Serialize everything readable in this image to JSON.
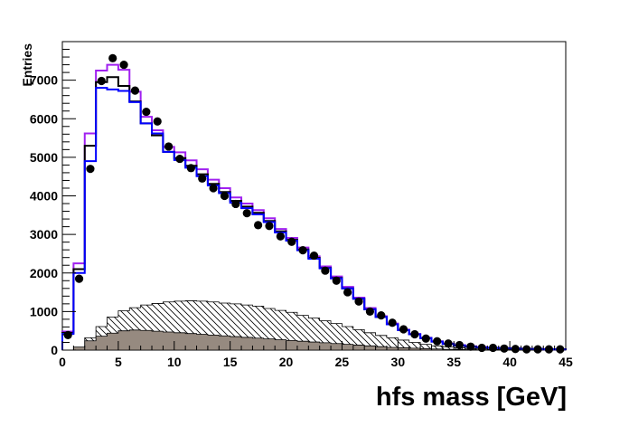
{
  "chart_data": {
    "type": "line",
    "title": "",
    "xlabel": "hfs mass [GeV]",
    "ylabel": "Entries",
    "xlim": [
      0,
      45
    ],
    "ylim": [
      0,
      8000
    ],
    "x_ticks": [
      0,
      5,
      10,
      15,
      20,
      25,
      30,
      35,
      40,
      45
    ],
    "y_ticks": [
      0,
      1000,
      2000,
      3000,
      4000,
      5000,
      6000,
      7000
    ],
    "bin_width": 1,
    "bin_edges_start": 0,
    "grid": false,
    "legend": "none",
    "series": [
      {
        "kind": "step",
        "color": "#a020f0",
        "values": [
          480,
          2250,
          5620,
          7250,
          7400,
          7270,
          6700,
          6050,
          5700,
          5270,
          5130,
          4920,
          4690,
          4420,
          4200,
          3960,
          3800,
          3630,
          3420,
          3140,
          2910,
          2660,
          2430,
          2170,
          1910,
          1640,
          1360,
          1090,
          880,
          690,
          530,
          420,
          320,
          230,
          170,
          130,
          100,
          80,
          60,
          50,
          40,
          30,
          30,
          20,
          20
        ]
      },
      {
        "kind": "step",
        "color": "#000000",
        "values": [
          450,
          2100,
          5300,
          6950,
          7080,
          6850,
          6450,
          5880,
          5570,
          5140,
          4980,
          4780,
          4560,
          4310,
          4100,
          3870,
          3720,
          3560,
          3350,
          3080,
          2860,
          2610,
          2390,
          2130,
          1870,
          1600,
          1330,
          1060,
          860,
          670,
          520,
          410,
          310,
          220,
          160,
          120,
          90,
          70,
          60,
          50,
          40,
          30,
          30,
          20,
          20
        ]
      },
      {
        "kind": "step",
        "color": "#0000ff",
        "values": [
          420,
          2000,
          4900,
          6800,
          6760,
          6720,
          6430,
          5880,
          5620,
          5140,
          4930,
          4730,
          4510,
          4270,
          4070,
          3820,
          3680,
          3520,
          3320,
          3050,
          2840,
          2590,
          2370,
          2120,
          1860,
          1600,
          1330,
          1060,
          860,
          670,
          520,
          410,
          310,
          220,
          160,
          120,
          90,
          70,
          60,
          50,
          40,
          30,
          30,
          20,
          20
        ]
      },
      {
        "kind": "hatched-step",
        "color": "#000000",
        "values": [
          0,
          60,
          320,
          610,
          860,
          1020,
          1100,
          1170,
          1210,
          1250,
          1270,
          1280,
          1270,
          1250,
          1220,
          1200,
          1170,
          1140,
          1080,
          1030,
          980,
          900,
          830,
          760,
          690,
          610,
          530,
          450,
          380,
          320,
          260,
          200,
          150,
          110,
          80,
          60,
          40,
          30,
          20,
          10,
          10,
          0,
          0,
          0,
          0
        ]
      },
      {
        "kind": "filled-step",
        "color": "#968a80",
        "values": [
          0,
          80,
          240,
          360,
          440,
          500,
          520,
          510,
          490,
          470,
          450,
          430,
          410,
          390,
          370,
          350,
          330,
          310,
          290,
          270,
          250,
          230,
          210,
          190,
          170,
          150,
          130,
          110,
          90,
          70,
          60,
          50,
          40,
          30,
          20,
          15,
          10,
          5,
          5,
          0,
          0,
          0,
          0,
          0,
          0
        ]
      },
      {
        "kind": "points",
        "color": "#000000",
        "x": [
          0.5,
          1.5,
          2.5,
          3.5,
          4.5,
          5.5,
          6.5,
          7.5,
          8.5,
          9.5,
          10.5,
          11.5,
          12.5,
          13.5,
          14.5,
          15.5,
          16.5,
          17.5,
          18.5,
          19.5,
          20.5,
          21.5,
          22.5,
          23.5,
          24.5,
          25.5,
          26.5,
          27.5,
          28.5,
          29.5,
          30.5,
          31.5,
          32.5,
          33.5,
          34.5,
          35.5,
          36.5,
          37.5,
          38.5,
          39.5,
          40.5,
          41.5,
          42.5,
          43.5,
          44.5
        ],
        "values": [
          390,
          1850,
          4700,
          6980,
          7570,
          7400,
          6730,
          6180,
          5930,
          5280,
          4960,
          4720,
          4450,
          4200,
          4000,
          3790,
          3550,
          3240,
          3220,
          2950,
          2810,
          2590,
          2450,
          2060,
          1800,
          1500,
          1260,
          1000,
          900,
          710,
          540,
          410,
          300,
          230,
          170,
          130,
          90,
          60,
          60,
          40,
          30,
          20,
          20,
          20,
          20
        ]
      }
    ]
  }
}
